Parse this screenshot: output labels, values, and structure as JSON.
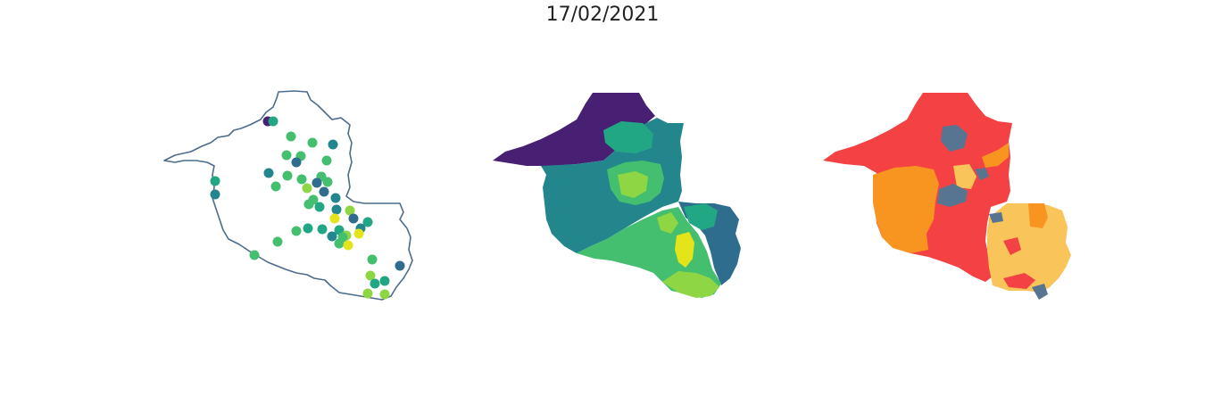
{
  "title": "17/02/2021",
  "colors": {
    "outline": "#4c6c8c",
    "viridis_dark": "#471f73",
    "viridis_blue": "#2f6d8e",
    "viridis_teal": "#23868d",
    "viridis_green": "#22a785",
    "viridis_lightgreen": "#44bf70",
    "viridis_lime": "#8fd644",
    "viridis_yellow": "#e3e419",
    "risk_red": "#f44144",
    "risk_orange": "#f89521",
    "risk_yellow": "#f9c55a",
    "risk_slate": "#577590"
  },
  "panels": [
    {
      "name": "points-map",
      "kind": "points"
    },
    {
      "name": "choropleth-viridis",
      "kind": "choropleth"
    },
    {
      "name": "choropleth-risk",
      "kind": "choropleth"
    }
  ]
}
